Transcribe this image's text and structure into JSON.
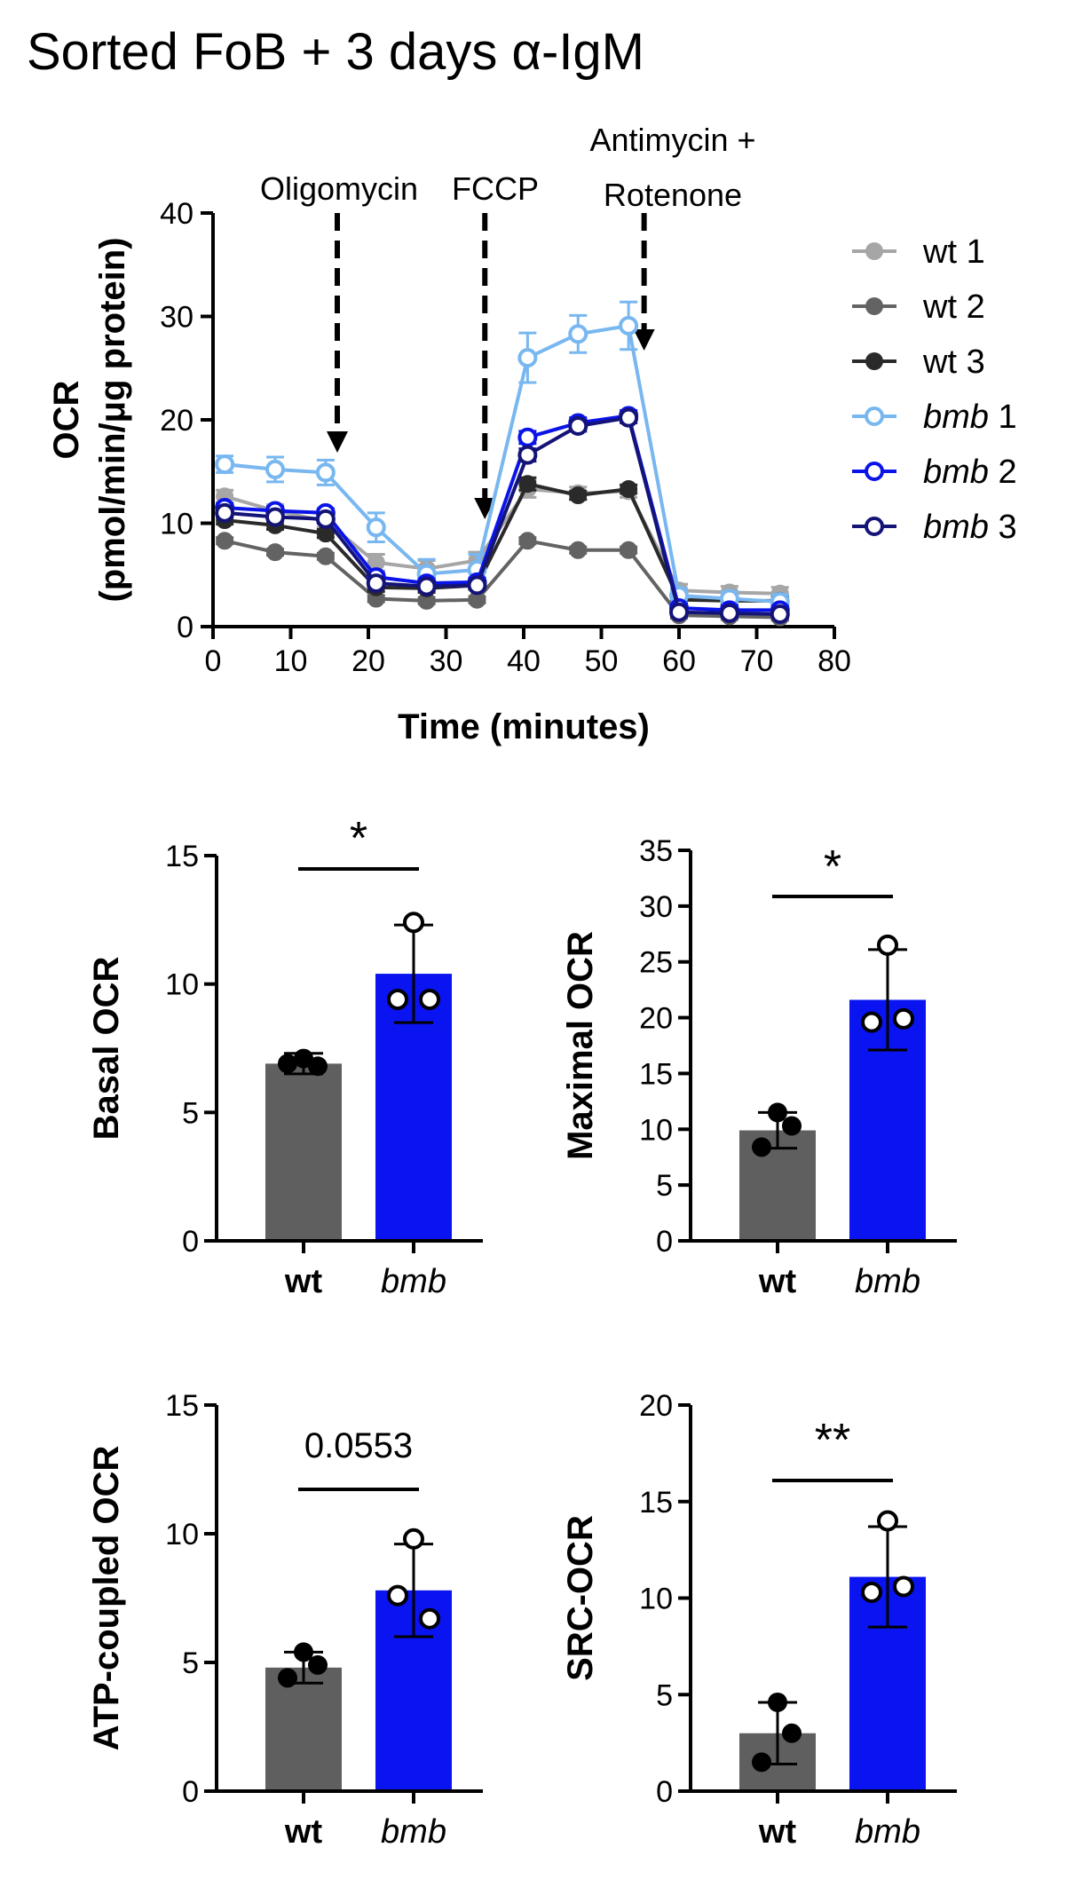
{
  "figure_title": "Sorted FoB + 3 days α-IgM",
  "chart_data": [
    {
      "type": "line",
      "xlabel": "Time (minutes)",
      "ylabel_line1": "OCR",
      "ylabel_line2": "(pmol/min/μg protein)",
      "xlim": [
        0,
        80
      ],
      "ylim": [
        0,
        40
      ],
      "xticks": [
        "0",
        "10",
        "20",
        "30",
        "40",
        "50",
        "60",
        "70",
        "80"
      ],
      "yticks": [
        "0",
        "10",
        "20",
        "30",
        "40"
      ],
      "annotations": [
        {
          "text": "Oligomycin",
          "x": 16
        },
        {
          "text": "FCCP",
          "x": 35
        },
        {
          "text": "Antimycin +",
          "text2": "Rotenone",
          "x": 55.5
        }
      ],
      "x": [
        1.5,
        8,
        14.5,
        21,
        27.5,
        34,
        40.5,
        47,
        53.5,
        60,
        66.5,
        73
      ],
      "series": [
        {
          "name": "wt",
          "num": "1",
          "italic": false,
          "color": "#a6a6a6",
          "filled": true,
          "values": [
            12.6,
            11.2,
            10.2,
            6.2,
            5.6,
            6.4,
            13.3,
            12.9,
            13.1,
            3.5,
            3.3,
            3.2
          ],
          "errors": [
            0.6,
            0.6,
            0.6,
            0.8,
            0.8,
            0.8,
            0.8,
            0.6,
            0.6,
            0.6,
            0.6,
            0.6
          ]
        },
        {
          "name": "wt",
          "num": "2",
          "italic": false,
          "color": "#636363",
          "filled": true,
          "values": [
            8.3,
            7.2,
            6.8,
            2.7,
            2.5,
            2.6,
            8.3,
            7.4,
            7.4,
            1.1,
            1.0,
            0.9
          ],
          "errors": [
            0.3,
            0.3,
            0.3,
            0.3,
            0.3,
            0.3,
            0.3,
            0.3,
            0.3,
            0.3,
            0.3,
            0.3
          ]
        },
        {
          "name": "wt",
          "num": "3",
          "italic": false,
          "color": "#2a2a2a",
          "filled": true,
          "values": [
            10.3,
            9.8,
            9.0,
            3.8,
            3.7,
            4.0,
            13.8,
            12.7,
            13.3,
            2.6,
            2.5,
            2.5
          ],
          "errors": [
            0.4,
            0.4,
            0.4,
            0.4,
            0.4,
            0.4,
            0.6,
            0.4,
            0.4,
            0.4,
            0.4,
            0.4
          ]
        },
        {
          "name": "bmb",
          "num": "1",
          "italic": true,
          "color": "#78b7f0",
          "filled": false,
          "values": [
            15.7,
            15.2,
            14.9,
            9.6,
            5.1,
            5.5,
            26.0,
            28.3,
            29.1,
            3.0,
            2.7,
            2.4
          ],
          "errors": [
            0.8,
            1.2,
            1.2,
            1.4,
            1.4,
            1.5,
            2.4,
            1.8,
            2.3,
            0.7,
            0.7,
            0.7
          ]
        },
        {
          "name": "bmb",
          "num": "2",
          "italic": true,
          "color": "#0a14e8",
          "filled": false,
          "values": [
            11.5,
            11.2,
            11.0,
            4.8,
            4.2,
            4.3,
            18.3,
            19.7,
            20.4,
            1.8,
            1.6,
            1.6
          ],
          "errors": [
            0.4,
            0.4,
            0.4,
            0.4,
            0.4,
            0.4,
            0.6,
            0.5,
            0.5,
            0.4,
            0.4,
            0.4
          ]
        },
        {
          "name": "bmb",
          "num": "3",
          "italic": true,
          "color": "#141478",
          "filled": false,
          "values": [
            11.0,
            10.6,
            10.4,
            4.2,
            3.9,
            4.0,
            16.6,
            19.4,
            20.2,
            1.4,
            1.3,
            1.2
          ],
          "errors": [
            0.4,
            0.4,
            0.4,
            0.4,
            0.4,
            0.4,
            0.6,
            0.5,
            0.5,
            0.4,
            0.4,
            0.4
          ]
        }
      ]
    },
    {
      "type": "bar",
      "ylabel": "Basal OCR",
      "ylim": [
        0,
        15
      ],
      "yticks": [
        "0",
        "5",
        "10",
        "15"
      ],
      "categories": [
        "wt",
        "bmb"
      ],
      "values": [
        6.9,
        10.4
      ],
      "errors": [
        0.4,
        1.9
      ],
      "points": [
        [
          7.1,
          6.8,
          6.9
        ],
        [
          12.4,
          9.4,
          9.4
        ]
      ],
      "colors": [
        "#5f5f5f",
        "#0a14f0"
      ],
      "significance": "*"
    },
    {
      "type": "bar",
      "ylabel": "Maximal OCR",
      "ylim": [
        0,
        35
      ],
      "yticks": [
        "0",
        "5",
        "10",
        "15",
        "20",
        "25",
        "30",
        "35"
      ],
      "categories": [
        "wt",
        "bmb"
      ],
      "values": [
        9.9,
        21.6
      ],
      "errors": [
        1.6,
        4.5
      ],
      "points": [
        [
          11.5,
          10.3,
          8.4
        ],
        [
          26.5,
          19.6,
          19.9
        ]
      ],
      "colors": [
        "#5f5f5f",
        "#0a14f0"
      ],
      "significance": "*"
    },
    {
      "type": "bar",
      "ylabel": "ATP-coupled OCR",
      "ylim": [
        0,
        15
      ],
      "yticks": [
        "0",
        "5",
        "10",
        "15"
      ],
      "categories": [
        "wt",
        "bmb"
      ],
      "values": [
        4.8,
        7.8
      ],
      "errors": [
        0.6,
        1.8
      ],
      "points": [
        [
          5.4,
          4.9,
          4.4
        ],
        [
          9.8,
          7.6,
          6.7
        ]
      ],
      "colors": [
        "#5f5f5f",
        "#0a14f0"
      ],
      "significance": "0.0553"
    },
    {
      "type": "bar",
      "ylabel": "SRC-OCR",
      "ylim": [
        0,
        20
      ],
      "yticks": [
        "0",
        "5",
        "10",
        "15",
        "20"
      ],
      "categories": [
        "wt",
        "bmb"
      ],
      "values": [
        3.0,
        11.1
      ],
      "errors": [
        1.6,
        2.6
      ],
      "points": [
        [
          4.6,
          3.0,
          1.5
        ],
        [
          14.0,
          10.3,
          10.6
        ]
      ],
      "colors": [
        "#5f5f5f",
        "#0a14f0"
      ],
      "significance": "**"
    }
  ]
}
